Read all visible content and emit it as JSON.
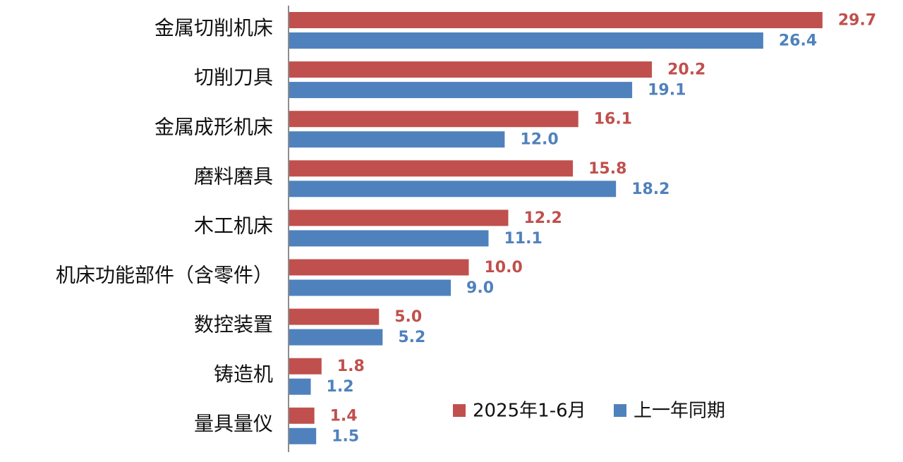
{
  "chart_data": {
    "type": "bar",
    "orientation": "horizontal",
    "categories": [
      "金属切削机床",
      "切削刀具",
      "金属成形机床",
      "磨料磨具",
      "木工机床",
      "机床功能部件（含零件）",
      "数控装置",
      "铸造机",
      "量具量仪"
    ],
    "series": [
      {
        "name": "2025年1-6月",
        "color": "#C0504D",
        "values": [
          29.7,
          20.2,
          16.1,
          15.8,
          12.2,
          10.0,
          5.0,
          1.8,
          1.4
        ],
        "labels": [
          "29.7",
          "20.2",
          "16.1",
          "15.8",
          "12.2",
          "10.0",
          "5.0",
          "1.8",
          "1.4"
        ]
      },
      {
        "name": "上一年同期",
        "color": "#4F81BD",
        "values": [
          26.4,
          19.1,
          12.0,
          18.2,
          11.1,
          9.0,
          5.2,
          1.2,
          1.5
        ],
        "labels": [
          "26.4",
          "19.1",
          "12.0",
          "18.2",
          "11.1",
          "9.0",
          "5.2",
          "1.2",
          "1.5"
        ]
      }
    ],
    "xlim": [
      0,
      30
    ],
    "grid": false,
    "legend_position": "bottom-right"
  }
}
